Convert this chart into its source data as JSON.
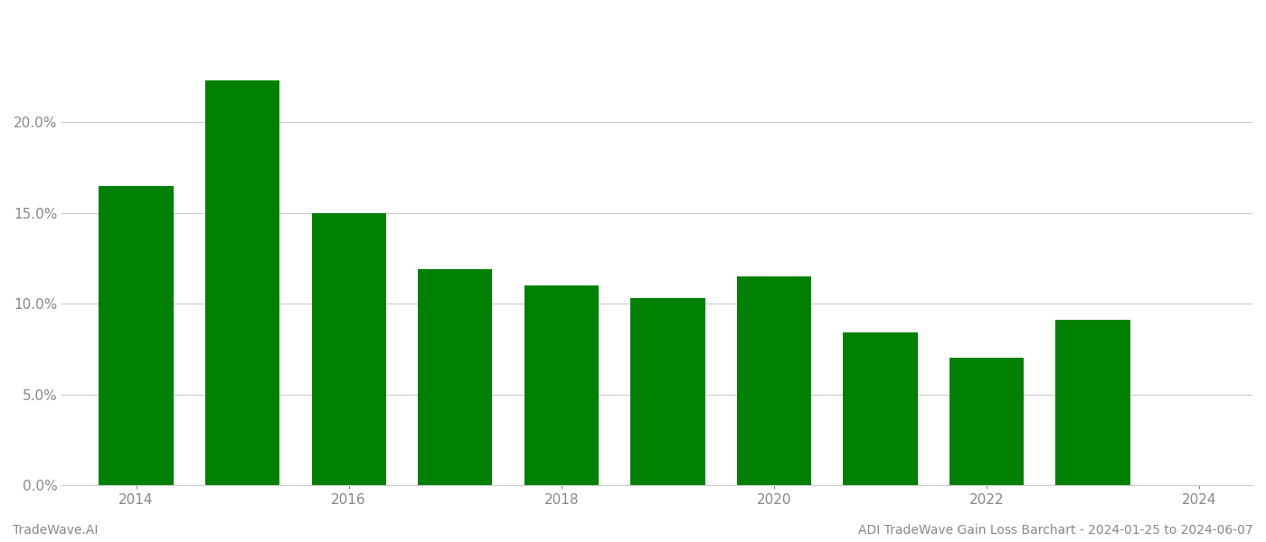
{
  "years": [
    2014,
    2015,
    2016,
    2017,
    2018,
    2019,
    2020,
    2021,
    2022,
    2023
  ],
  "values": [
    0.165,
    0.223,
    0.15,
    0.119,
    0.11,
    0.103,
    0.115,
    0.084,
    0.07,
    0.091
  ],
  "bar_color": "#008000",
  "footer_left": "TradeWave.AI",
  "footer_right": "ADI TradeWave Gain Loss Barchart - 2024-01-25 to 2024-06-07",
  "ylim": [
    0,
    0.26
  ],
  "yticks": [
    0.0,
    0.05,
    0.1,
    0.15,
    0.2
  ],
  "xticks": [
    2014,
    2016,
    2018,
    2020,
    2022,
    2024
  ],
  "xlim": [
    2013.3,
    2024.5
  ],
  "background_color": "#ffffff",
  "grid_color": "#cccccc",
  "tick_label_color": "#888888",
  "bar_width": 0.7
}
